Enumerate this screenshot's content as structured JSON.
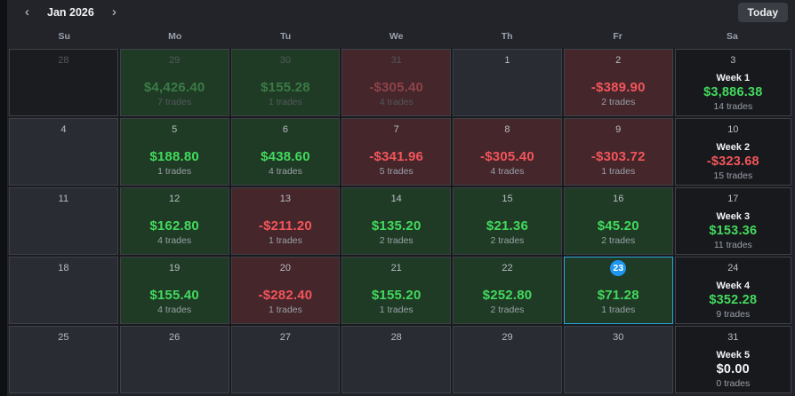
{
  "header": {
    "prev_icon": "‹",
    "month_label": "Jan 2026",
    "next_icon": "›",
    "today_button": "Today"
  },
  "day_headers": [
    "Su",
    "Mo",
    "Tu",
    "We",
    "Th",
    "Fr",
    "Sa"
  ],
  "colors": {
    "positive_text": "#43d95e",
    "negative_text": "#f2555a",
    "positive_cell_bg": "#1f3b25",
    "negative_cell_bg": "#44262b",
    "today_border": "#2aa7de",
    "today_badge_bg": "#1d96f0"
  },
  "weeks": [
    [
      {
        "date": "28",
        "outside": true
      },
      {
        "date": "29",
        "outside": true,
        "pnl": "$4,426.40",
        "trades": "7 trades",
        "sign": "pos"
      },
      {
        "date": "30",
        "outside": true,
        "pnl": "$155.28",
        "trades": "1 trades",
        "sign": "pos"
      },
      {
        "date": "31",
        "outside": true,
        "pnl": "-$305.40",
        "trades": "4 trades",
        "sign": "neg"
      },
      {
        "date": "1"
      },
      {
        "date": "2",
        "pnl": "-$389.90",
        "trades": "2 trades",
        "sign": "neg"
      },
      {
        "date": "3",
        "week": {
          "label": "Week 1",
          "pnl": "$3,886.38",
          "trades": "14 trades",
          "sign": "pos"
        }
      }
    ],
    [
      {
        "date": "4"
      },
      {
        "date": "5",
        "pnl": "$188.80",
        "trades": "1 trades",
        "sign": "pos"
      },
      {
        "date": "6",
        "pnl": "$438.60",
        "trades": "4 trades",
        "sign": "pos"
      },
      {
        "date": "7",
        "pnl": "-$341.96",
        "trades": "5 trades",
        "sign": "neg"
      },
      {
        "date": "8",
        "pnl": "-$305.40",
        "trades": "4 trades",
        "sign": "neg"
      },
      {
        "date": "9",
        "pnl": "-$303.72",
        "trades": "1 trades",
        "sign": "neg"
      },
      {
        "date": "10",
        "week": {
          "label": "Week 2",
          "pnl": "-$323.68",
          "trades": "15 trades",
          "sign": "neg"
        }
      }
    ],
    [
      {
        "date": "11"
      },
      {
        "date": "12",
        "pnl": "$162.80",
        "trades": "4 trades",
        "sign": "pos"
      },
      {
        "date": "13",
        "pnl": "-$211.20",
        "trades": "1 trades",
        "sign": "neg"
      },
      {
        "date": "14",
        "pnl": "$135.20",
        "trades": "2 trades",
        "sign": "pos"
      },
      {
        "date": "15",
        "pnl": "$21.36",
        "trades": "2 trades",
        "sign": "pos"
      },
      {
        "date": "16",
        "pnl": "$45.20",
        "trades": "2 trades",
        "sign": "pos"
      },
      {
        "date": "17",
        "week": {
          "label": "Week 3",
          "pnl": "$153.36",
          "trades": "11 trades",
          "sign": "pos"
        }
      }
    ],
    [
      {
        "date": "18"
      },
      {
        "date": "19",
        "pnl": "$155.40",
        "trades": "4 trades",
        "sign": "pos"
      },
      {
        "date": "20",
        "pnl": "-$282.40",
        "trades": "1 trades",
        "sign": "neg"
      },
      {
        "date": "21",
        "pnl": "$155.20",
        "trades": "1 trades",
        "sign": "pos"
      },
      {
        "date": "22",
        "pnl": "$252.80",
        "trades": "2 trades",
        "sign": "pos"
      },
      {
        "date": "23",
        "today": true,
        "pnl": "$71.28",
        "trades": "1 trades",
        "sign": "pos"
      },
      {
        "date": "24",
        "week": {
          "label": "Week 4",
          "pnl": "$352.28",
          "trades": "9 trades",
          "sign": "pos"
        }
      }
    ],
    [
      {
        "date": "25"
      },
      {
        "date": "26"
      },
      {
        "date": "27"
      },
      {
        "date": "28"
      },
      {
        "date": "29"
      },
      {
        "date": "30"
      },
      {
        "date": "31",
        "week": {
          "label": "Week 5",
          "pnl": "$0.00",
          "trades": "0 trades",
          "sign": "zero"
        }
      }
    ]
  ]
}
